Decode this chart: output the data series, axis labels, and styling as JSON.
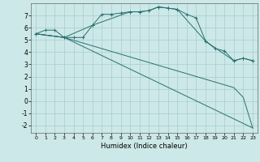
{
  "xlabel": "Humidex (Indice chaleur)",
  "bg_color": "#cce8e8",
  "grid_color": "#aacccc",
  "line_color": "#2a7070",
  "xlim": [
    -0.5,
    23.5
  ],
  "ylim": [
    -2.6,
    8.0
  ],
  "xticks": [
    0,
    1,
    2,
    3,
    4,
    5,
    6,
    7,
    8,
    9,
    10,
    11,
    12,
    13,
    14,
    15,
    16,
    17,
    18,
    19,
    20,
    21,
    22,
    23
  ],
  "yticks": [
    -2,
    -1,
    0,
    1,
    2,
    3,
    4,
    5,
    6,
    7
  ],
  "line1_x": [
    0,
    1,
    2,
    3,
    4,
    5,
    6,
    7,
    8,
    9,
    10,
    11,
    12,
    13,
    14,
    15,
    16,
    17,
    18,
    19,
    20,
    21,
    22,
    23
  ],
  "line1_y": [
    5.5,
    5.8,
    5.8,
    5.2,
    5.2,
    5.2,
    6.2,
    7.1,
    7.1,
    7.2,
    7.3,
    7.3,
    7.4,
    7.7,
    7.6,
    7.5,
    7.1,
    6.8,
    4.9,
    4.3,
    4.1,
    3.3,
    3.5,
    3.3
  ],
  "line2_x": [
    0,
    3,
    6,
    10,
    11,
    12,
    13,
    14,
    15,
    18,
    21,
    22,
    23
  ],
  "line2_y": [
    5.5,
    5.2,
    6.2,
    7.3,
    7.3,
    7.4,
    7.7,
    7.6,
    7.5,
    4.9,
    3.3,
    3.5,
    3.3
  ],
  "line3_x": [
    0,
    3,
    23
  ],
  "line3_y": [
    5.5,
    5.2,
    -2.2
  ],
  "line4_x": [
    0,
    3,
    21,
    22,
    23
  ],
  "line4_y": [
    5.5,
    5.2,
    1.1,
    0.3,
    -2.2
  ],
  "marker": "+"
}
